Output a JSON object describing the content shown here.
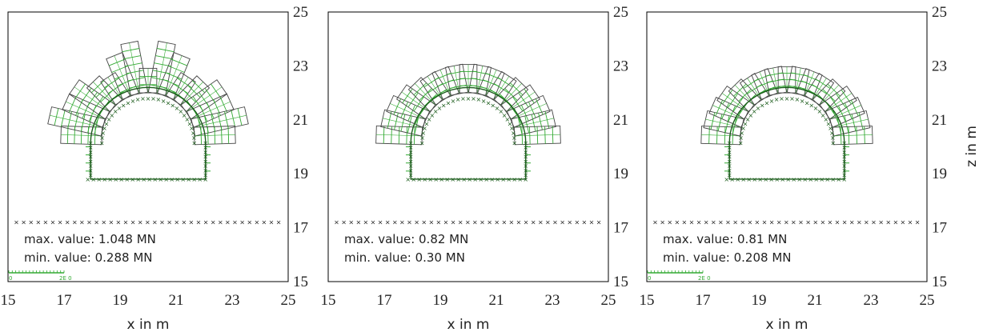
{
  "panels": [
    {
      "max_label": "max. value: 1.048 MN",
      "min_label": "min. value: 0.288 MN",
      "scale_bar": true,
      "scale_label_left": "0",
      "scale_label_right": "2E 0",
      "fan_length_factor": 1.25,
      "arc_force_profile": [
        1.5,
        2.0,
        1.6,
        1.6,
        1.2,
        1.0,
        1.6,
        1.9,
        0.9,
        1.9,
        1.6,
        1.0,
        1.2,
        1.6,
        1.6,
        2.0,
        1.5
      ]
    },
    {
      "max_label": "max. value: 0.82 MN",
      "min_label": "min. value: 0.30 MN",
      "scale_bar": false,
      "scale_label_left": "",
      "scale_label_right": "",
      "fan_length_factor": 1.0,
      "arc_force_profile": [
        2.1,
        1.9,
        1.8,
        1.6,
        1.4,
        1.3,
        1.3,
        1.3,
        1.3,
        1.3,
        1.3,
        1.3,
        1.4,
        1.6,
        1.8,
        1.9,
        2.1
      ]
    },
    {
      "max_label": "max. value: 0.81 MN",
      "min_label": "min. value: 0.208 MN",
      "scale_bar": true,
      "scale_label_left": "0",
      "scale_label_right": "2E 0",
      "fan_length_factor": 1.0,
      "arc_force_profile": [
        1.8,
        1.7,
        1.6,
        1.5,
        1.3,
        1.2,
        1.2,
        1.2,
        1.2,
        1.2,
        1.2,
        1.2,
        1.3,
        1.5,
        1.6,
        1.7,
        1.8
      ]
    }
  ],
  "x_axis": {
    "label": "x in m",
    "ticks": [
      "15",
      "17",
      "19",
      "21",
      "23",
      "25"
    ],
    "range": [
      15,
      25
    ]
  },
  "z_axis": {
    "label": "z in m",
    "ticks": [
      "15",
      "17",
      "19",
      "21",
      "23",
      "25"
    ],
    "range": [
      15,
      25
    ]
  },
  "colors": {
    "force_bars": "#33aa33",
    "bar_outline": "#444444",
    "nodes": "#1a5c1a",
    "frame": "#000000",
    "ground_line": "#222222"
  }
}
